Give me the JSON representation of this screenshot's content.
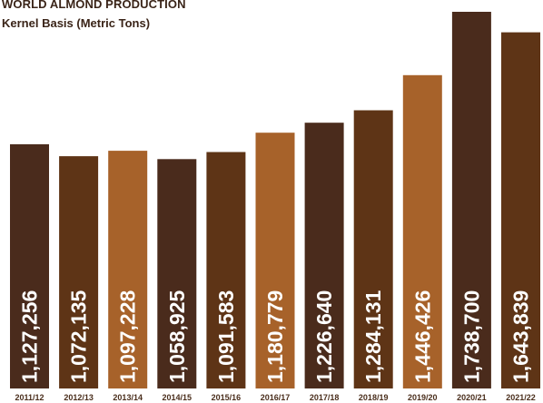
{
  "chart_data": {
    "type": "bar",
    "title": "WORLD ALMOND PRODUCTION",
    "subtitle": "Kernel Basis (Metric Tons)",
    "xlabel": "",
    "ylabel": "",
    "grid": false,
    "legend": "none",
    "categories": [
      "2011/12",
      "2012/13",
      "2013/14",
      "2014/15",
      "2015/16",
      "2016/17",
      "2017/18",
      "2018/19",
      "2019/20",
      "2020/21",
      "2021/22"
    ],
    "values": [
      1127256,
      1072135,
      1097228,
      1058925,
      1091583,
      1180779,
      1226640,
      1284131,
      1446426,
      1738700,
      1643839
    ],
    "value_labels": [
      "1,127,256",
      "1,072,135",
      "1,097,228",
      "1,058,925",
      "1,091,583",
      "1,180,779",
      "1,226,640",
      "1,284,131",
      "1,446,426",
      "1,738,700",
      "1,643,839"
    ],
    "bar_colors": [
      "#4a2b1c",
      "#5e3416",
      "#a7622a",
      "#4a2b1c",
      "#5e3416",
      "#a7622a",
      "#4a2b1c",
      "#5e3416",
      "#a7622a",
      "#4a2b1c",
      "#5e3416"
    ],
    "ylim": [
      0,
      1738700
    ]
  },
  "colors": {
    "dark_brown": "#4a2b1c",
    "medium_brown": "#5e3416",
    "copper": "#a7622a",
    "text": "#4a2e1c"
  }
}
